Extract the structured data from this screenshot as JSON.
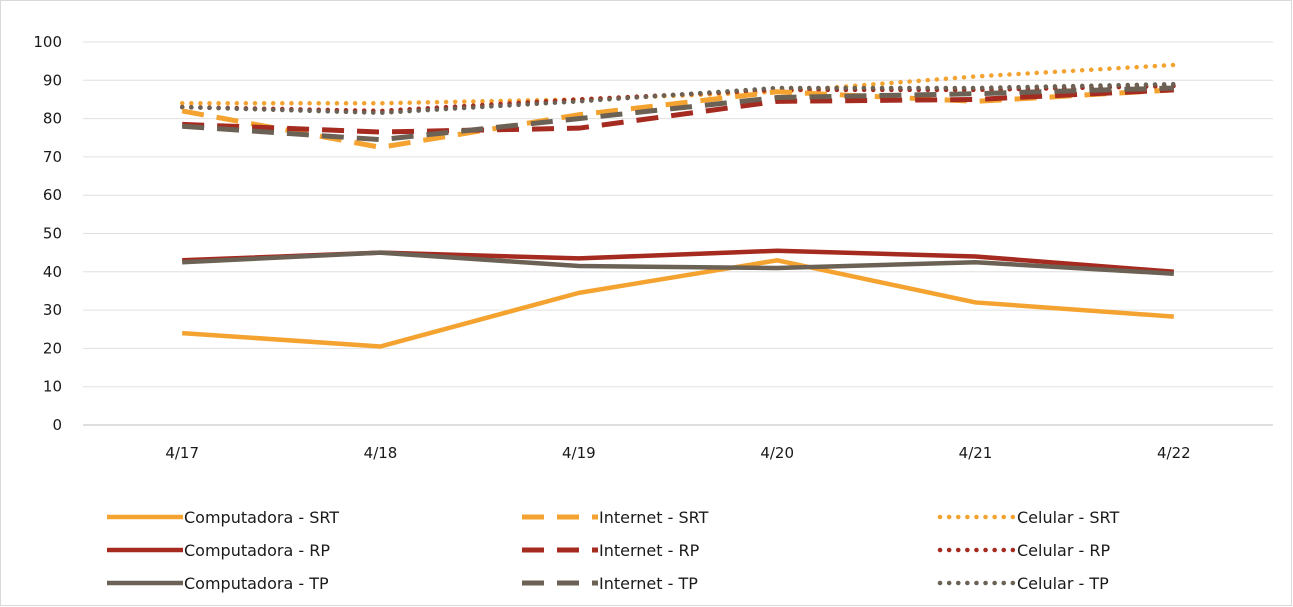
{
  "chart_data": {
    "type": "line",
    "title": "",
    "xlabel": "",
    "ylabel": "",
    "categories": [
      "4/17",
      "4/18",
      "4/19",
      "4/20",
      "4/21",
      "4/22"
    ],
    "ylim": [
      0,
      100
    ],
    "yticks": [
      0,
      10,
      20,
      30,
      40,
      50,
      60,
      70,
      80,
      90,
      100
    ],
    "grid": true,
    "legend_position": "bottom",
    "series": [
      {
        "name": "Computadora - SRT",
        "color": "#F4A330",
        "style": "solid",
        "values": [
          24,
          20.5,
          34.5,
          43,
          32,
          28.3
        ]
      },
      {
        "name": "Internet - SRT",
        "color": "#F4A330",
        "style": "dash",
        "values": [
          82,
          72.5,
          81,
          87,
          84.5,
          87.5
        ]
      },
      {
        "name": "Celular - SRT",
        "color": "#F4A330",
        "style": "dot",
        "values": [
          84,
          84,
          85,
          87,
          91,
          94
        ]
      },
      {
        "name": "Computadora - RP",
        "color": "#A52A1F",
        "style": "solid",
        "values": [
          43,
          45,
          43.5,
          45.5,
          44,
          40
        ]
      },
      {
        "name": "Internet - RP",
        "color": "#A52A1F",
        "style": "dash",
        "values": [
          78.5,
          76.5,
          77.5,
          84.5,
          85,
          87.5
        ]
      },
      {
        "name": "Celular - RP",
        "color": "#A52A1F",
        "style": "dot",
        "values": [
          83,
          82,
          85,
          87.5,
          87.5,
          88.5
        ]
      },
      {
        "name": "Computadora - TP",
        "color": "#6B6255",
        "style": "solid",
        "values": [
          42.5,
          45,
          41.5,
          41,
          42.5,
          39.5
        ]
      },
      {
        "name": "Internet - TP",
        "color": "#6B6255",
        "style": "dash",
        "values": [
          78,
          74.5,
          80,
          85.5,
          86.5,
          88
        ]
      },
      {
        "name": "Celular - TP",
        "color": "#6B6255",
        "style": "dot",
        "values": [
          83,
          81.5,
          84.5,
          88,
          88,
          89
        ]
      }
    ]
  }
}
